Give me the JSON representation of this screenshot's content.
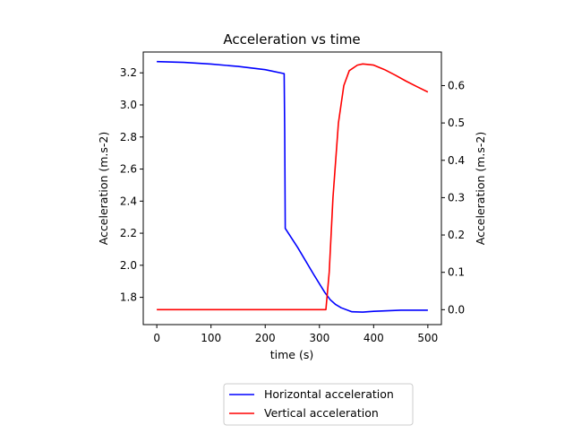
{
  "chart_data": {
    "type": "line",
    "title": "Acceleration vs time",
    "xlabel": "time (s)",
    "ylabel_left": "Acceleration (m.s-2)",
    "ylabel_right": "Acceleration (m.s-2)",
    "xlim": [
      -25,
      525
    ],
    "ylim_left": [
      1.63,
      3.33
    ],
    "ylim_right": [
      -0.04,
      0.69
    ],
    "x_ticks": [
      0,
      100,
      200,
      300,
      400,
      500
    ],
    "y_left_ticks": [
      "1.8",
      "2.0",
      "2.2",
      "2.4",
      "2.6",
      "2.8",
      "3.0",
      "3.2"
    ],
    "y_right_ticks": [
      "0.0",
      "0.1",
      "0.2",
      "0.3",
      "0.4",
      "0.5",
      "0.6"
    ],
    "grid": false,
    "legend_position": "below",
    "series": [
      {
        "name": "Horizontal acceleration",
        "axis": "left",
        "color": "#0000ff",
        "points": [
          [
            0,
            3.27
          ],
          [
            50,
            3.265
          ],
          [
            100,
            3.255
          ],
          [
            150,
            3.24
          ],
          [
            200,
            3.22
          ],
          [
            235,
            3.195
          ],
          [
            236,
            2.83
          ],
          [
            237,
            2.23
          ],
          [
            260,
            2.11
          ],
          [
            290,
            1.94
          ],
          [
            310,
            1.83
          ],
          [
            320,
            1.785
          ],
          [
            330,
            1.755
          ],
          [
            340,
            1.735
          ],
          [
            360,
            1.71
          ],
          [
            380,
            1.708
          ],
          [
            400,
            1.713
          ],
          [
            450,
            1.72
          ],
          [
            500,
            1.72
          ]
        ]
      },
      {
        "name": "Vertical acceleration",
        "axis": "right",
        "color": "#ff0000",
        "points": [
          [
            0,
            0.0
          ],
          [
            100,
            0.0
          ],
          [
            200,
            0.0
          ],
          [
            300,
            0.0
          ],
          [
            312,
            0.0
          ],
          [
            318,
            0.1
          ],
          [
            325,
            0.3
          ],
          [
            335,
            0.5
          ],
          [
            345,
            0.6
          ],
          [
            355,
            0.64
          ],
          [
            370,
            0.655
          ],
          [
            380,
            0.658
          ],
          [
            400,
            0.655
          ],
          [
            420,
            0.643
          ],
          [
            440,
            0.628
          ],
          [
            460,
            0.612
          ],
          [
            480,
            0.597
          ],
          [
            500,
            0.583
          ]
        ]
      }
    ]
  }
}
